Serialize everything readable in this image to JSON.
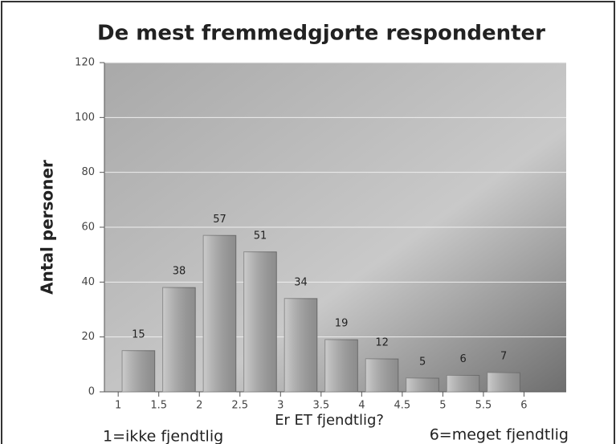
{
  "chart_data": {
    "type": "histogram",
    "title": "De mest fremmedgjorte respondenter",
    "x_label": "Er ET fjendtlig?",
    "y_label": "Antal personer",
    "annotations": [
      "1=ikke fjendtlig",
      "6=meget fjendtlig"
    ],
    "bins": [
      1,
      1.5,
      2,
      2.5,
      3,
      3.5,
      4,
      4.5,
      5,
      5.5,
      6
    ],
    "values": [
      15,
      38,
      57,
      51,
      34,
      19,
      12,
      5,
      6,
      7
    ],
    "color": "#b0b0b0",
    "xlim": [
      0.83,
      6.52
    ],
    "xticks": [
      1,
      1.5,
      2,
      2.5,
      3,
      3.5,
      4,
      4.5,
      5,
      5.5,
      6
    ],
    "ylim": [
      0,
      120
    ],
    "yticks": [
      0,
      20,
      40,
      60,
      80,
      100,
      120
    ],
    "grid": true
  }
}
